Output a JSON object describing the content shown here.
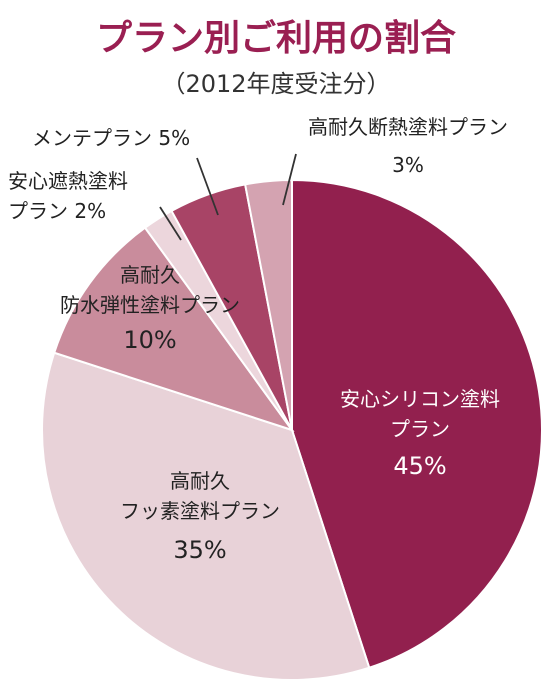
{
  "chart_data": {
    "type": "pie",
    "title": "プラン別ご利用の割合",
    "subtitle": "（2012年度受注分）",
    "slices": [
      {
        "label": "安心シリコン塗料プラン",
        "label_lines": [
          "安心シリコン塗料",
          "プラン"
        ],
        "pct_text": "45%",
        "value": 45,
        "color": "#92204e"
      },
      {
        "label": "高耐久フッ素塗料プラン",
        "label_lines": [
          "高耐久",
          "フッ素塗料プラン"
        ],
        "pct_text": "35%",
        "value": 35,
        "color": "#e8d2d8"
      },
      {
        "label": "高耐久防水弾性塗料プラン",
        "label_lines": [
          "高耐久",
          "防水弾性塗料プラン"
        ],
        "pct_text": "10%",
        "value": 10,
        "color": "#c98c9c"
      },
      {
        "label": "安心遮熱塗料プラン",
        "label_lines": [
          "安心遮熱塗料",
          "プラン 2%"
        ],
        "pct_text": "",
        "value": 2,
        "color": "#ecd6dc"
      },
      {
        "label": "メンテプラン",
        "label_lines": [
          "メンテプラン 5%"
        ],
        "pct_text": "",
        "value": 5,
        "color": "#a84466"
      },
      {
        "label": "高耐久断熱塗料プラン",
        "label_lines": [
          "高耐久断熱塗料プラン",
          "3%"
        ],
        "pct_text": "",
        "value": 3,
        "color": "#d4a3b1"
      }
    ]
  }
}
